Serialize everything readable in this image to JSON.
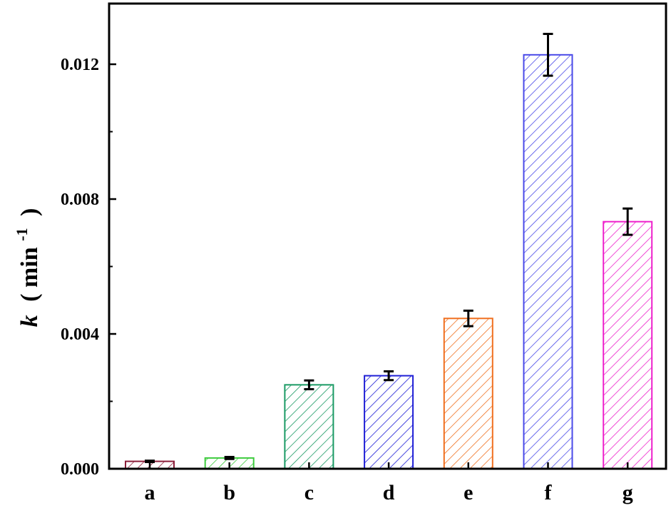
{
  "chart_data": {
    "type": "bar",
    "categories": [
      "a",
      "b",
      "c",
      "d",
      "e",
      "f",
      "g"
    ],
    "values": [
      0.00022,
      0.00032,
      0.00249,
      0.00276,
      0.00446,
      0.01228,
      0.00733
    ],
    "errors": [
      2e-05,
      3e-05,
      0.00013,
      0.00013,
      0.00023,
      0.00062,
      0.00039
    ],
    "colors": [
      "#8b1f3a",
      "#3ecb3e",
      "#1a9a64",
      "#1f1fd6",
      "#f07020",
      "#4a4ae8",
      "#ee22cc"
    ],
    "hatch": "diagonal",
    "error_bar_color": "#000000",
    "ylim": [
      0,
      0.0138
    ],
    "yticks": [
      0.0,
      0.004,
      0.008,
      0.012
    ],
    "ytick_labels": [
      "0.000",
      "0.004",
      "0.008",
      "0.012"
    ],
    "ylabel": {
      "symbol": "k",
      "unit_open": "( min",
      "unit_exp": "-1",
      "unit_close": ")"
    },
    "xlabel": "",
    "title": "",
    "grid": false
  }
}
